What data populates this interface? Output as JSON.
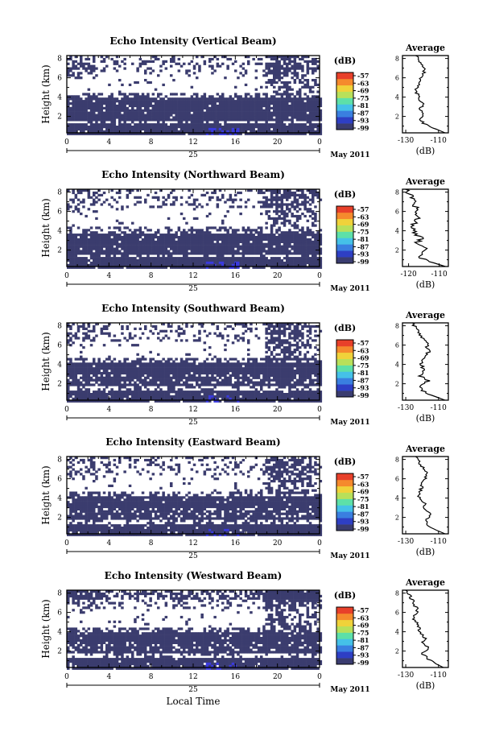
{
  "colors": {
    "echo": "#3b3c6e",
    "background": "#ffffff",
    "weak_blue": "#3a3adf",
    "colorbar": [
      "#3a3c70",
      "#2e3fc4",
      "#3a7fe0",
      "#45c1e8",
      "#5de0a8",
      "#b8e05a",
      "#f0d23a",
      "#f58a2d",
      "#e8402a"
    ]
  },
  "date_label": "May 2011",
  "day_label": "25",
  "x_axis_title": "Local Time",
  "panel_ylabel": "Height (km)",
  "colorbar_unit": "(dB)",
  "colorbar_ticks": [
    "-57",
    "-63",
    "-69",
    "-75",
    "-81",
    "-87",
    "-93",
    "-99"
  ],
  "average_title": "Average",
  "average_xlabel": "(dB)",
  "chart_data": [
    {
      "type": "heatmap",
      "title": "Echo Intensity (Vertical Beam)",
      "xlabel": "",
      "ylabel": "Height (km)",
      "x_ticks": [
        "0",
        "4",
        "8",
        "12",
        "16",
        "20",
        "0"
      ],
      "y_ticks": [
        "2",
        "4",
        "6",
        "8"
      ],
      "xlim": [
        0,
        24
      ],
      "ylim": [
        0.3,
        8.3
      ],
      "strong_layer_km": [
        0.3,
        4.0
      ],
      "gap_km": [
        1.3,
        1.6
      ],
      "variant": 0,
      "average_profile": {
        "xlabel": "(dB)",
        "x_ticks": [
          "-130",
          "-110"
        ],
        "y_ticks": [
          "2",
          "4",
          "6",
          "8"
        ],
        "xlim": [
          -132,
          -104
        ],
        "ylim": [
          0.3,
          8.3
        ],
        "height_km": [
          0.3,
          0.8,
          1.3,
          1.8,
          2.3,
          2.8,
          3.3,
          3.8,
          4.3,
          4.8,
          5.3,
          5.8,
          6.3,
          6.8,
          7.3,
          7.8,
          8.3
        ],
        "values": [
          -106,
          -113,
          -119,
          -121,
          -119,
          -121,
          -119,
          -122,
          -123,
          -124,
          -122,
          -121,
          -119,
          -119,
          -120,
          -122,
          -124
        ]
      }
    },
    {
      "type": "heatmap",
      "title": "Echo Intensity (Northward Beam)",
      "xlabel": "",
      "ylabel": "Height (km)",
      "x_ticks": [
        "0",
        "4",
        "8",
        "12",
        "16",
        "20",
        "0"
      ],
      "y_ticks": [
        "2",
        "4",
        "6",
        "8"
      ],
      "xlim": [
        0,
        24
      ],
      "ylim": [
        0.3,
        8.3
      ],
      "strong_layer_km": [
        0.3,
        3.9
      ],
      "gap_km": [
        1.4,
        1.7
      ],
      "variant": 1,
      "average_profile": {
        "xlabel": "(dB)",
        "x_ticks": [
          "-120",
          "-110"
        ],
        "y_ticks": [
          "2",
          "4",
          "6",
          "8"
        ],
        "xlim": [
          -122,
          -107
        ],
        "ylim": [
          0.3,
          8.3
        ],
        "height_km": [
          0.3,
          0.8,
          1.3,
          1.8,
          2.3,
          2.8,
          3.3,
          3.8,
          4.3,
          4.8,
          5.3,
          5.8,
          6.3,
          6.8,
          7.3,
          7.8,
          8.3
        ],
        "values": [
          -108,
          -113,
          -117,
          -116,
          -114,
          -117,
          -116,
          -118,
          -119,
          -118,
          -117,
          -118,
          -117,
          -119,
          -118,
          -120,
          -121
        ]
      }
    },
    {
      "type": "heatmap",
      "title": "Echo Intensity (Southward Beam)",
      "xlabel": "",
      "ylabel": "Height (km)",
      "x_ticks": [
        "0",
        "4",
        "8",
        "12",
        "16",
        "20",
        "0"
      ],
      "y_ticks": [
        "2",
        "4",
        "6",
        "8"
      ],
      "xlim": [
        0,
        24
      ],
      "ylim": [
        0.3,
        8.3
      ],
      "strong_layer_km": [
        0.3,
        4.3
      ],
      "gap_km": [
        1.5,
        1.9
      ],
      "variant": 2,
      "average_profile": {
        "xlabel": "(dB)",
        "x_ticks": [
          "-130",
          "-110"
        ],
        "y_ticks": [
          "2",
          "4",
          "6",
          "8"
        ],
        "xlim": [
          -132,
          -104
        ],
        "ylim": [
          0.3,
          8.3
        ],
        "height_km": [
          0.3,
          0.8,
          1.3,
          1.8,
          2.3,
          2.8,
          3.3,
          3.8,
          4.3,
          4.8,
          5.3,
          5.8,
          6.3,
          6.8,
          7.3,
          7.8,
          8.3
        ],
        "values": [
          -106,
          -114,
          -120,
          -122,
          -116,
          -121,
          -119,
          -120,
          -121,
          -118,
          -116,
          -117,
          -117,
          -120,
          -122,
          -124,
          -126
        ]
      }
    },
    {
      "type": "heatmap",
      "title": "Echo Intensity (Eastward Beam)",
      "xlabel": "",
      "ylabel": "Height (km)",
      "x_ticks": [
        "0",
        "4",
        "8",
        "12",
        "16",
        "20",
        "0"
      ],
      "y_ticks": [
        "2",
        "4",
        "6",
        "8"
      ],
      "xlim": [
        0,
        24
      ],
      "ylim": [
        0.3,
        8.3
      ],
      "strong_layer_km": [
        0.3,
        4.2
      ],
      "gap_km": [
        1.4,
        1.8
      ],
      "variant": 3,
      "average_profile": {
        "xlabel": "(dB)",
        "x_ticks": [
          "-130",
          "-110"
        ],
        "y_ticks": [
          "2",
          "4",
          "6",
          "8"
        ],
        "xlim": [
          -132,
          -104
        ],
        "ylim": [
          0.3,
          8.3
        ],
        "height_km": [
          0.3,
          0.8,
          1.3,
          1.8,
          2.3,
          2.8,
          3.3,
          3.8,
          4.3,
          4.8,
          5.3,
          5.8,
          6.3,
          6.8,
          7.3,
          7.8,
          8.3
        ],
        "values": [
          -106,
          -113,
          -118,
          -117,
          -115,
          -119,
          -118,
          -121,
          -122,
          -121,
          -120,
          -119,
          -117,
          -118,
          -120,
          -122,
          -124
        ]
      }
    },
    {
      "type": "heatmap",
      "title": "Echo Intensity (Westward Beam)",
      "xlabel": "Local Time",
      "ylabel": "Height (km)",
      "x_ticks": [
        "0",
        "4",
        "8",
        "12",
        "16",
        "20",
        "0"
      ],
      "y_ticks": [
        "2",
        "4",
        "6",
        "8"
      ],
      "xlim": [
        0,
        24
      ],
      "ylim": [
        0.3,
        8.3
      ],
      "strong_layer_km": [
        0.3,
        4.0
      ],
      "gap_km": [
        1.5,
        1.8
      ],
      "variant": 4,
      "average_profile": {
        "xlabel": "(dB)",
        "x_ticks": [
          "-130",
          "-110"
        ],
        "y_ticks": [
          "2",
          "4",
          "6",
          "8"
        ],
        "xlim": [
          -132,
          -104
        ],
        "ylim": [
          0.3,
          8.3
        ],
        "height_km": [
          0.3,
          0.8,
          1.3,
          1.8,
          2.3,
          2.8,
          3.3,
          3.8,
          4.3,
          4.8,
          5.3,
          5.8,
          6.3,
          6.8,
          7.3,
          7.8,
          8.3
        ],
        "values": [
          -107,
          -113,
          -117,
          -120,
          -116,
          -120,
          -118,
          -121,
          -122,
          -123,
          -125,
          -124,
          -123,
          -125,
          -126,
          -128,
          -130
        ]
      }
    }
  ]
}
